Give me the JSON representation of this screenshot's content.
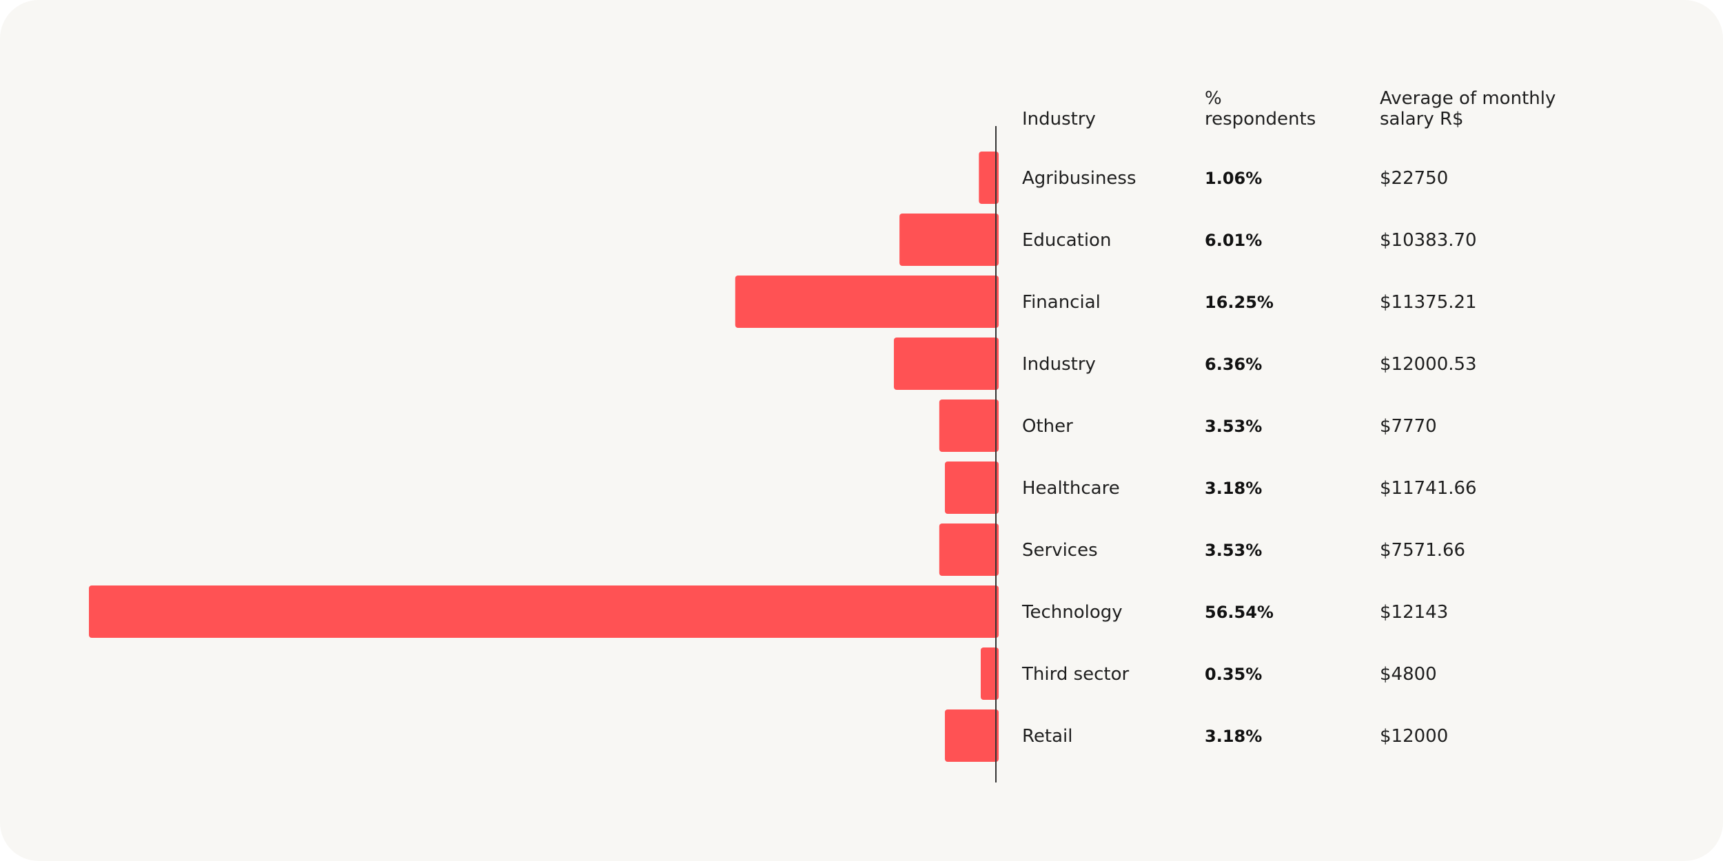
{
  "colors": {
    "background": "#f8f7f4",
    "bar": "#ff5254",
    "axis": "#333333",
    "text": "#1e1e1e"
  },
  "headers": {
    "industry": "Industry",
    "pct_line1": "%",
    "pct_line2": "respondents",
    "salary_line1": "Average of monthly",
    "salary_line2": "salary R$"
  },
  "chart_data": {
    "type": "bar",
    "orientation": "horizontal",
    "direction": "right-to-left",
    "categories": [
      "Agribusiness",
      "Education",
      "Financial",
      "Industry",
      "Other",
      "Healthcare",
      "Services",
      "Technology",
      "Third sector",
      "Retail"
    ],
    "values": [
      1.06,
      6.01,
      16.25,
      6.36,
      3.53,
      3.18,
      3.53,
      56.54,
      0.35,
      3.18
    ],
    "pct_labels": [
      "1.06%",
      "6.01%",
      "16.25%",
      "6.36%",
      "3.53%",
      "3.18%",
      "3.53%",
      "56.54%",
      "0.35%",
      "3.18%"
    ],
    "salary_labels": [
      "$22750",
      "$10383.70",
      "$11375.21",
      "$12000.53",
      "$7770",
      "$11741.66",
      "$7571.66",
      "$12143",
      "$4800",
      "$12000"
    ],
    "xlim": [
      0,
      56.54
    ],
    "grid": false,
    "legend": "none"
  }
}
